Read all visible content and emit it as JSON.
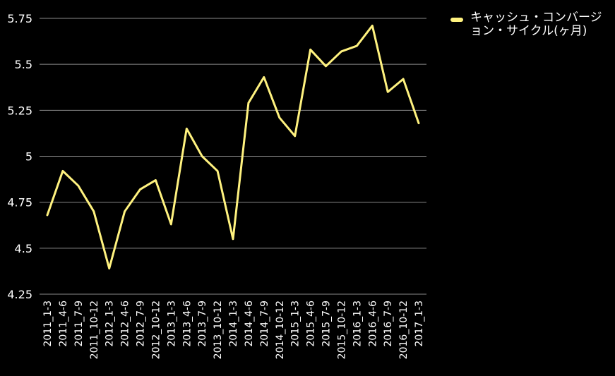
{
  "chart_data": {
    "type": "line",
    "categories": [
      "2011_1-3",
      "2011_4-6",
      "2011_7-9",
      "2011_10-12",
      "2012_1-3",
      "2012_4-6",
      "2012_7-9",
      "2012_10-12",
      "2013_1-3",
      "2013_4-6",
      "2013_7-9",
      "2013_10-12",
      "2014_1-3",
      "2014_4-6",
      "2014_7-9",
      "2014_10-12",
      "2015_1-3",
      "2015_4-6",
      "2015_7-9",
      "2015_10-12",
      "2016_1-3",
      "2016_4-6",
      "2016_7-9",
      "2016_10-12",
      "2017_1-3"
    ],
    "series": [
      {
        "name": "キャッシュ・コンバージョン・サイクル(ヶ月)",
        "color": "#fff27f",
        "values": [
          4.68,
          4.92,
          4.84,
          4.7,
          4.39,
          4.7,
          4.82,
          4.87,
          4.63,
          5.15,
          5.0,
          4.92,
          4.55,
          5.29,
          5.43,
          5.21,
          5.11,
          5.58,
          5.49,
          5.57,
          5.6,
          5.71,
          5.35,
          5.42,
          5.18
        ]
      }
    ],
    "yticks": [
      "4.25",
      "4.5",
      "4.75",
      "5",
      "5.25",
      "5.5",
      "5.75"
    ],
    "ylim": [
      4.25,
      5.75
    ],
    "grid": true,
    "legend_position": "top-right",
    "background": "#000000",
    "grid_color": "#8a8a8a",
    "text_color": "#ffffff"
  }
}
